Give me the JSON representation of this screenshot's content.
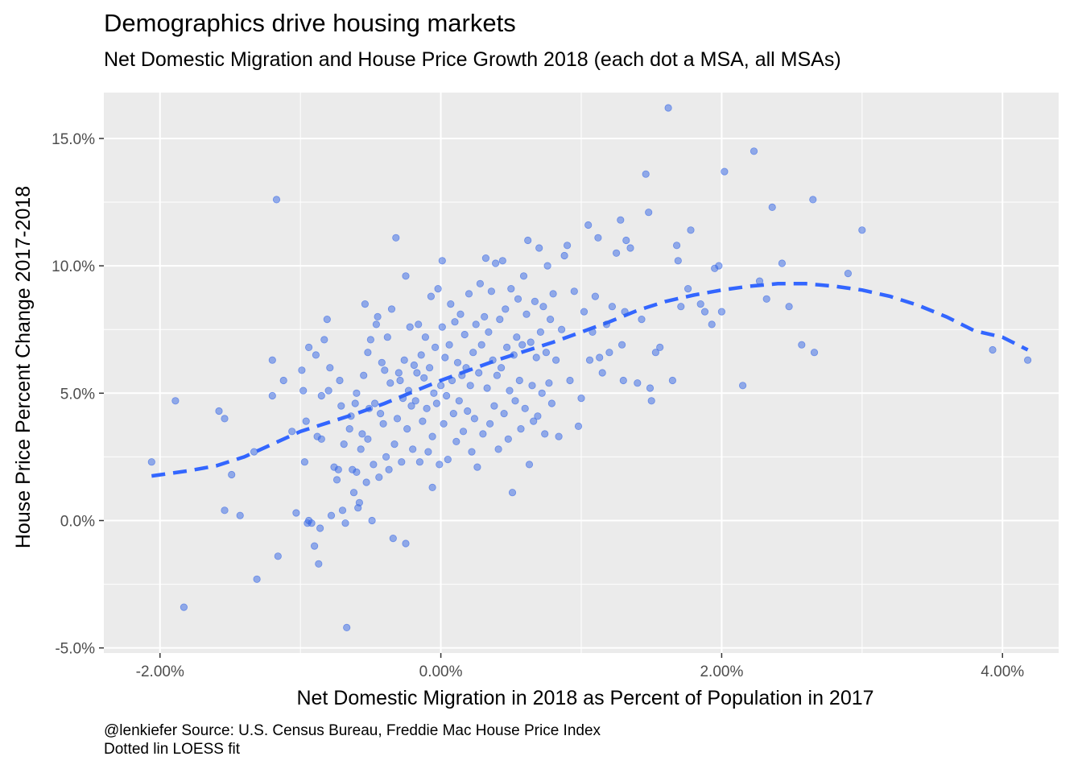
{
  "chart_data": {
    "type": "scatter",
    "title": "Demographics drive housing markets",
    "subtitle": "Net Domestic Migration and House Price Growth 2018 (each dot a MSA, all MSAs)",
    "xlabel": "Net Domestic Migration in 2018 as Percent of Population in 2017",
    "ylabel": "House Price Percent Change 2017-2018",
    "caption_lines": [
      "@lenkiefer Source: U.S. Census Bureau, Freddie Mac House Price Index",
      "Dotted lin LOESS fit"
    ],
    "xlim": [
      -2.4,
      4.4
    ],
    "ylim": [
      -5.2,
      16.8
    ],
    "x_ticks": [
      {
        "value": -2,
        "label": "-2.00%"
      },
      {
        "value": 0,
        "label": "0.00%"
      },
      {
        "value": 2,
        "label": "2.00%"
      },
      {
        "value": 4,
        "label": "4.00%"
      }
    ],
    "y_ticks": [
      {
        "value": -5,
        "label": "-5.0%"
      },
      {
        "value": 0,
        "label": "0.0%"
      },
      {
        "value": 5,
        "label": "5.0%"
      },
      {
        "value": 10,
        "label": "10.0%"
      },
      {
        "value": 15,
        "label": "15.0%"
      }
    ],
    "grid": true,
    "point_color": "#3366e6",
    "line_color": "#3366ff",
    "panel_color": "#ebebeb",
    "points": [
      [
        -2.06,
        2.3
      ],
      [
        -1.89,
        4.7
      ],
      [
        -1.83,
        -3.4
      ],
      [
        -1.58,
        4.3
      ],
      [
        -1.54,
        4.0
      ],
      [
        -1.54,
        0.4
      ],
      [
        -1.49,
        1.8
      ],
      [
        -1.43,
        0.2
      ],
      [
        -1.33,
        2.7
      ],
      [
        -1.31,
        -2.3
      ],
      [
        -1.2,
        6.3
      ],
      [
        -1.2,
        4.9
      ],
      [
        -1.17,
        12.6
      ],
      [
        -1.16,
        -1.4
      ],
      [
        -1.12,
        5.5
      ],
      [
        -1.06,
        3.5
      ],
      [
        -1.03,
        0.3
      ],
      [
        -0.99,
        5.9
      ],
      [
        -0.98,
        5.1
      ],
      [
        -0.97,
        2.3
      ],
      [
        -0.96,
        3.9
      ],
      [
        -0.95,
        -0.1
      ],
      [
        -0.94,
        0.0
      ],
      [
        -0.94,
        6.8
      ],
      [
        -0.92,
        -0.1
      ],
      [
        -0.9,
        -1.0
      ],
      [
        -0.89,
        6.5
      ],
      [
        -0.88,
        3.3
      ],
      [
        -0.87,
        -1.7
      ],
      [
        -0.86,
        -0.3
      ],
      [
        -0.85,
        3.2
      ],
      [
        -0.85,
        4.9
      ],
      [
        -0.83,
        7.1
      ],
      [
        -0.81,
        7.9
      ],
      [
        -0.8,
        5.1
      ],
      [
        -0.79,
        6.0
      ],
      [
        -0.78,
        0.2
      ],
      [
        -0.76,
        2.1
      ],
      [
        -0.74,
        1.6
      ],
      [
        -0.73,
        2.0
      ],
      [
        -0.72,
        5.5
      ],
      [
        -0.71,
        4.5
      ],
      [
        -0.7,
        0.4
      ],
      [
        -0.69,
        3.0
      ],
      [
        -0.68,
        -0.1
      ],
      [
        -0.67,
        -4.2
      ],
      [
        -0.65,
        3.6
      ],
      [
        -0.64,
        4.1
      ],
      [
        -0.63,
        2.0
      ],
      [
        -0.62,
        1.1
      ],
      [
        -0.61,
        4.6
      ],
      [
        -0.6,
        1.9
      ],
      [
        -0.6,
        5.0
      ],
      [
        -0.59,
        0.5
      ],
      [
        -0.58,
        0.7
      ],
      [
        -0.57,
        2.8
      ],
      [
        -0.56,
        3.4
      ],
      [
        -0.55,
        5.7
      ],
      [
        -0.54,
        8.5
      ],
      [
        -0.53,
        1.5
      ],
      [
        -0.52,
        3.2
      ],
      [
        -0.52,
        6.6
      ],
      [
        -0.51,
        4.4
      ],
      [
        -0.5,
        7.1
      ],
      [
        -0.49,
        0.0
      ],
      [
        -0.48,
        2.2
      ],
      [
        -0.47,
        4.6
      ],
      [
        -0.46,
        7.7
      ],
      [
        -0.45,
        8.0
      ],
      [
        -0.44,
        1.7
      ],
      [
        -0.43,
        4.2
      ],
      [
        -0.42,
        6.2
      ],
      [
        -0.41,
        3.8
      ],
      [
        -0.4,
        5.9
      ],
      [
        -0.39,
        2.5
      ],
      [
        -0.38,
        7.2
      ],
      [
        -0.37,
        2.0
      ],
      [
        -0.36,
        5.4
      ],
      [
        -0.35,
        8.3
      ],
      [
        -0.34,
        -0.7
      ],
      [
        -0.33,
        3.0
      ],
      [
        -0.32,
        11.1
      ],
      [
        -0.31,
        4.0
      ],
      [
        -0.3,
        5.8
      ],
      [
        -0.29,
        5.5
      ],
      [
        -0.28,
        2.3
      ],
      [
        -0.27,
        4.8
      ],
      [
        -0.26,
        6.3
      ],
      [
        -0.25,
        9.6
      ],
      [
        -0.25,
        -0.9
      ],
      [
        -0.24,
        3.6
      ],
      [
        -0.23,
        5.1
      ],
      [
        -0.22,
        7.6
      ],
      [
        -0.21,
        4.5
      ],
      [
        -0.2,
        2.8
      ],
      [
        -0.19,
        6.1
      ],
      [
        -0.18,
        4.7
      ],
      [
        -0.17,
        5.8
      ],
      [
        -0.16,
        7.7
      ],
      [
        -0.15,
        2.3
      ],
      [
        -0.14,
        6.5
      ],
      [
        -0.13,
        3.9
      ],
      [
        -0.12,
        5.6
      ],
      [
        -0.11,
        7.2
      ],
      [
        -0.1,
        4.4
      ],
      [
        -0.09,
        2.7
      ],
      [
        -0.08,
        6.0
      ],
      [
        -0.07,
        8.8
      ],
      [
        -0.06,
        3.3
      ],
      [
        -0.06,
        1.3
      ],
      [
        -0.05,
        5.0
      ],
      [
        -0.04,
        6.8
      ],
      [
        -0.03,
        4.6
      ],
      [
        -0.02,
        9.1
      ],
      [
        -0.01,
        2.2
      ],
      [
        0.0,
        5.3
      ],
      [
        0.01,
        7.6
      ],
      [
        0.01,
        10.2
      ],
      [
        0.02,
        3.8
      ],
      [
        0.03,
        6.4
      ],
      [
        0.04,
        4.9
      ],
      [
        0.05,
        2.4
      ],
      [
        0.06,
        6.9
      ],
      [
        0.07,
        8.5
      ],
      [
        0.08,
        5.5
      ],
      [
        0.09,
        4.2
      ],
      [
        0.1,
        7.8
      ],
      [
        0.11,
        3.1
      ],
      [
        0.12,
        6.2
      ],
      [
        0.13,
        4.7
      ],
      [
        0.14,
        8.1
      ],
      [
        0.15,
        5.7
      ],
      [
        0.16,
        3.5
      ],
      [
        0.17,
        7.3
      ],
      [
        0.18,
        6.0
      ],
      [
        0.19,
        4.3
      ],
      [
        0.2,
        8.9
      ],
      [
        0.21,
        5.3
      ],
      [
        0.22,
        2.7
      ],
      [
        0.23,
        6.6
      ],
      [
        0.24,
        4.0
      ],
      [
        0.25,
        7.7
      ],
      [
        0.26,
        2.1
      ],
      [
        0.27,
        5.8
      ],
      [
        0.28,
        9.3
      ],
      [
        0.29,
        6.9
      ],
      [
        0.3,
        3.4
      ],
      [
        0.31,
        8.0
      ],
      [
        0.32,
        10.3
      ],
      [
        0.33,
        5.2
      ],
      [
        0.34,
        7.4
      ],
      [
        0.35,
        3.8
      ],
      [
        0.36,
        9.0
      ],
      [
        0.37,
        6.3
      ],
      [
        0.38,
        4.5
      ],
      [
        0.39,
        10.1
      ],
      [
        0.4,
        5.7
      ],
      [
        0.41,
        2.8
      ],
      [
        0.42,
        7.9
      ],
      [
        0.43,
        6.0
      ],
      [
        0.44,
        10.2
      ],
      [
        0.45,
        4.2
      ],
      [
        0.46,
        8.3
      ],
      [
        0.47,
        6.8
      ],
      [
        0.48,
        3.2
      ],
      [
        0.49,
        5.1
      ],
      [
        0.5,
        9.1
      ],
      [
        0.51,
        1.1
      ],
      [
        0.52,
        6.5
      ],
      [
        0.53,
        4.7
      ],
      [
        0.54,
        7.2
      ],
      [
        0.55,
        8.7
      ],
      [
        0.56,
        5.5
      ],
      [
        0.57,
        3.6
      ],
      [
        0.58,
        6.9
      ],
      [
        0.59,
        9.6
      ],
      [
        0.6,
        4.4
      ],
      [
        0.61,
        8.1
      ],
      [
        0.62,
        11.0
      ],
      [
        0.63,
        2.2
      ],
      [
        0.64,
        7.0
      ],
      [
        0.65,
        5.3
      ],
      [
        0.66,
        3.9
      ],
      [
        0.67,
        8.6
      ],
      [
        0.68,
        6.4
      ],
      [
        0.69,
        4.1
      ],
      [
        0.7,
        10.7
      ],
      [
        0.71,
        7.4
      ],
      [
        0.72,
        5.0
      ],
      [
        0.73,
        8.4
      ],
      [
        0.74,
        3.4
      ],
      [
        0.75,
        6.6
      ],
      [
        0.76,
        10.0
      ],
      [
        0.77,
        5.4
      ],
      [
        0.78,
        7.9
      ],
      [
        0.79,
        4.6
      ],
      [
        0.8,
        8.9
      ],
      [
        0.82,
        6.3
      ],
      [
        0.84,
        3.3
      ],
      [
        0.86,
        7.5
      ],
      [
        0.88,
        10.4
      ],
      [
        0.9,
        10.8
      ],
      [
        0.92,
        5.5
      ],
      [
        0.95,
        9.0
      ],
      [
        0.98,
        3.7
      ],
      [
        1.0,
        4.8
      ],
      [
        1.02,
        8.2
      ],
      [
        1.05,
        11.6
      ],
      [
        1.06,
        6.3
      ],
      [
        1.08,
        7.4
      ],
      [
        1.1,
        8.8
      ],
      [
        1.12,
        11.1
      ],
      [
        1.13,
        6.4
      ],
      [
        1.15,
        5.8
      ],
      [
        1.18,
        7.7
      ],
      [
        1.2,
        6.6
      ],
      [
        1.22,
        8.4
      ],
      [
        1.25,
        10.5
      ],
      [
        1.28,
        11.8
      ],
      [
        1.29,
        6.9
      ],
      [
        1.3,
        5.5
      ],
      [
        1.31,
        8.2
      ],
      [
        1.32,
        11.0
      ],
      [
        1.35,
        10.7
      ],
      [
        1.4,
        5.4
      ],
      [
        1.43,
        7.9
      ],
      [
        1.46,
        13.6
      ],
      [
        1.48,
        12.1
      ],
      [
        1.49,
        5.2
      ],
      [
        1.5,
        4.7
      ],
      [
        1.53,
        6.6
      ],
      [
        1.56,
        6.8
      ],
      [
        1.62,
        16.2
      ],
      [
        1.65,
        5.5
      ],
      [
        1.68,
        10.8
      ],
      [
        1.69,
        10.2
      ],
      [
        1.71,
        8.4
      ],
      [
        1.76,
        9.1
      ],
      [
        1.78,
        11.4
      ],
      [
        1.85,
        8.5
      ],
      [
        1.88,
        8.2
      ],
      [
        1.93,
        7.7
      ],
      [
        1.95,
        9.9
      ],
      [
        1.98,
        10.0
      ],
      [
        2.0,
        8.2
      ],
      [
        2.02,
        13.7
      ],
      [
        2.15,
        5.3
      ],
      [
        2.23,
        14.5
      ],
      [
        2.27,
        9.4
      ],
      [
        2.32,
        8.7
      ],
      [
        2.36,
        12.3
      ],
      [
        2.43,
        10.1
      ],
      [
        2.48,
        8.4
      ],
      [
        2.57,
        6.9
      ],
      [
        2.65,
        12.6
      ],
      [
        2.66,
        6.6
      ],
      [
        2.9,
        9.7
      ],
      [
        3.0,
        11.4
      ],
      [
        3.93,
        6.7
      ],
      [
        4.18,
        6.3
      ]
    ],
    "loess": [
      [
        -2.06,
        1.75
      ],
      [
        -1.8,
        1.95
      ],
      [
        -1.6,
        2.15
      ],
      [
        -1.4,
        2.5
      ],
      [
        -1.2,
        3.0
      ],
      [
        -1.0,
        3.5
      ],
      [
        -0.8,
        3.85
      ],
      [
        -0.6,
        4.2
      ],
      [
        -0.4,
        4.6
      ],
      [
        -0.2,
        5.05
      ],
      [
        0.0,
        5.5
      ],
      [
        0.2,
        5.9
      ],
      [
        0.4,
        6.3
      ],
      [
        0.6,
        6.65
      ],
      [
        0.8,
        7.0
      ],
      [
        1.0,
        7.4
      ],
      [
        1.2,
        7.8
      ],
      [
        1.4,
        8.25
      ],
      [
        1.6,
        8.6
      ],
      [
        1.8,
        8.85
      ],
      [
        2.0,
        9.05
      ],
      [
        2.2,
        9.2
      ],
      [
        2.4,
        9.3
      ],
      [
        2.6,
        9.3
      ],
      [
        2.8,
        9.2
      ],
      [
        3.0,
        9.05
      ],
      [
        3.2,
        8.8
      ],
      [
        3.4,
        8.45
      ],
      [
        3.6,
        8.0
      ],
      [
        3.8,
        7.45
      ],
      [
        4.0,
        7.2
      ],
      [
        4.18,
        6.7
      ]
    ]
  }
}
